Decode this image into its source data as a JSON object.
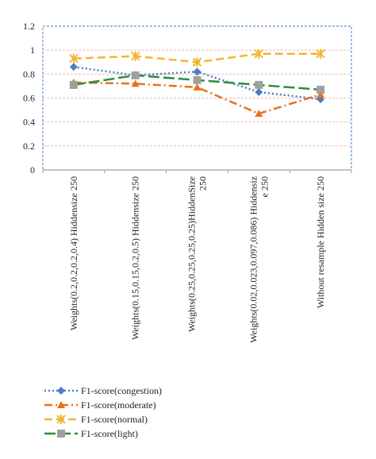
{
  "chart_data": {
    "type": "line",
    "title": "",
    "xlabel": "",
    "ylabel": "",
    "ylim": [
      0,
      1.2
    ],
    "yticks": [
      "0",
      "0.2",
      "0.4",
      "0.6",
      "0.8",
      "1",
      "1.2"
    ],
    "grid": true,
    "legend_placement": "bottom-left",
    "categories": [
      [
        "Weights(0.2,0.2,0.2,0.4) Hiddensize 250"
      ],
      [
        "Weights(0.15,0.15,0.2,0.5) Hiddensize 250"
      ],
      [
        "Weights(0.25,0.25,0.25,0.25)HiddenSize",
        "250"
      ],
      [
        "Weights(0.02,0.023,0.097,0.086) Hiddensiz",
        "e 250"
      ],
      [
        "Without resample Hidden size 250"
      ]
    ],
    "series": [
      {
        "name": "F1-score(congestion)",
        "values": [
          0.86,
          0.79,
          0.82,
          0.65,
          0.59
        ],
        "color": "#4a7ec4",
        "dash": "2,3",
        "marker": "diamond"
      },
      {
        "name": "F1-score(moderate)",
        "values": [
          0.73,
          0.72,
          0.69,
          0.47,
          0.63
        ],
        "color": "#e8711c",
        "dash": "10,4,2,4",
        "marker": "triangle"
      },
      {
        "name": "F1-score(normal)",
        "values": [
          0.93,
          0.95,
          0.9,
          0.97,
          0.97
        ],
        "color": "#f2b632",
        "dash": "10,5",
        "marker": "star"
      },
      {
        "name": "F1-score(light)",
        "values": [
          0.71,
          0.79,
          0.75,
          0.71,
          0.67
        ],
        "color": "#2e8b3e",
        "dash": "14,5",
        "marker": "square"
      }
    ],
    "colors": {
      "plot_border": "#5b8fd6",
      "grid": "#f0b8b8",
      "axis": "#999999",
      "marker_light": "#a0a0a0"
    }
  }
}
